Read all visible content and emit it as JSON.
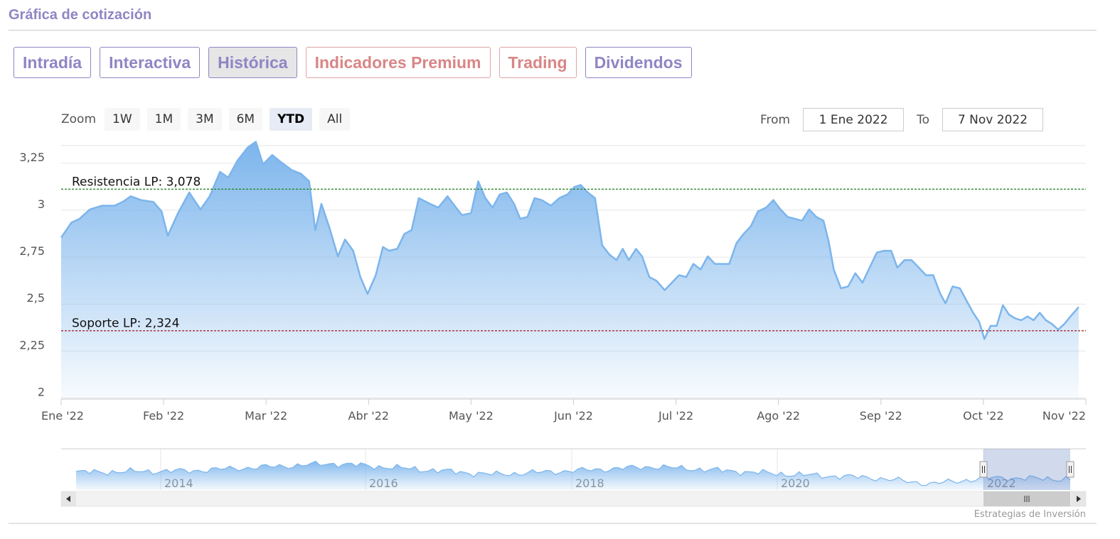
{
  "section": {
    "title": "Gráfica de cotización"
  },
  "tabs": [
    {
      "label": "Intradía",
      "kind": "normal",
      "active": false
    },
    {
      "label": "Interactiva",
      "kind": "normal",
      "active": false
    },
    {
      "label": "Histórica",
      "kind": "normal",
      "active": true
    },
    {
      "label": "Indicadores Premium",
      "kind": "premium",
      "active": false
    },
    {
      "label": "Trading",
      "kind": "premium",
      "active": false
    },
    {
      "label": "Dividendos",
      "kind": "normal",
      "active": false
    }
  ],
  "zoom": {
    "label": "Zoom",
    "buttons": [
      "1W",
      "1M",
      "3M",
      "6M",
      "YTD",
      "All"
    ],
    "selected": "YTD"
  },
  "range": {
    "from_label": "From",
    "from_value": "1 Ene 2022",
    "to_label": "To",
    "to_value": "7 Nov 2022"
  },
  "colors": {
    "accent": "#8e86c4",
    "premium": "#d98686",
    "series": "#7cb5ec",
    "resistance": "#1a7f1a",
    "support": "#a01818"
  },
  "chart_data": {
    "type": "area",
    "x_ticks": [
      "Ene '22",
      "Feb '22",
      "Mar '22",
      "Abr '22",
      "May '22",
      "Jun '22",
      "Jul '22",
      "Ago '22",
      "Sep '22",
      "Oct '22",
      "Nov '22"
    ],
    "y_ticks": [
      "2",
      "2,25",
      "2,5",
      "2,75",
      "3",
      "3,25"
    ],
    "ylim": [
      1.96,
      3.31
    ],
    "xlim": [
      0,
      1
    ],
    "grid": true,
    "series": [
      {
        "values": [
          [
            0.0,
            2.82
          ],
          [
            0.01,
            2.9
          ],
          [
            0.018,
            2.92
          ],
          [
            0.028,
            2.97
          ],
          [
            0.04,
            2.99
          ],
          [
            0.052,
            2.99
          ],
          [
            0.06,
            3.01
          ],
          [
            0.068,
            3.04
          ],
          [
            0.078,
            3.02
          ],
          [
            0.09,
            3.01
          ],
          [
            0.098,
            2.96
          ],
          [
            0.104,
            2.83
          ],
          [
            0.114,
            2.95
          ],
          [
            0.125,
            3.06
          ],
          [
            0.136,
            2.97
          ],
          [
            0.145,
            3.04
          ],
          [
            0.155,
            3.17
          ],
          [
            0.163,
            3.14
          ],
          [
            0.172,
            3.23
          ],
          [
            0.182,
            3.3
          ],
          [
            0.19,
            3.33
          ],
          [
            0.197,
            3.21
          ],
          [
            0.206,
            3.26
          ],
          [
            0.215,
            3.22
          ],
          [
            0.225,
            3.18
          ],
          [
            0.234,
            3.16
          ],
          [
            0.242,
            3.12
          ],
          [
            0.248,
            2.86
          ],
          [
            0.254,
            3.0
          ],
          [
            0.262,
            2.87
          ],
          [
            0.27,
            2.72
          ],
          [
            0.277,
            2.81
          ],
          [
            0.285,
            2.75
          ],
          [
            0.292,
            2.61
          ],
          [
            0.299,
            2.52
          ],
          [
            0.307,
            2.62
          ],
          [
            0.314,
            2.77
          ],
          [
            0.32,
            2.75
          ],
          [
            0.328,
            2.76
          ],
          [
            0.335,
            2.84
          ],
          [
            0.342,
            2.86
          ],
          [
            0.349,
            3.03
          ],
          [
            0.36,
            3.0
          ],
          [
            0.368,
            2.98
          ],
          [
            0.377,
            3.04
          ],
          [
            0.384,
            2.99
          ],
          [
            0.391,
            2.94
          ],
          [
            0.4,
            2.95
          ],
          [
            0.407,
            3.12
          ],
          [
            0.414,
            3.03
          ],
          [
            0.421,
            2.98
          ],
          [
            0.428,
            3.05
          ],
          [
            0.435,
            3.06
          ],
          [
            0.442,
            3.0
          ],
          [
            0.448,
            2.92
          ],
          [
            0.455,
            2.93
          ],
          [
            0.462,
            3.03
          ],
          [
            0.469,
            3.02
          ],
          [
            0.478,
            2.99
          ],
          [
            0.486,
            3.03
          ],
          [
            0.494,
            3.05
          ],
          [
            0.501,
            3.09
          ],
          [
            0.507,
            3.1
          ],
          [
            0.514,
            3.06
          ],
          [
            0.521,
            3.03
          ],
          [
            0.528,
            2.78
          ],
          [
            0.535,
            2.73
          ],
          [
            0.542,
            2.7
          ],
          [
            0.548,
            2.76
          ],
          [
            0.554,
            2.7
          ],
          [
            0.561,
            2.76
          ],
          [
            0.567,
            2.72
          ],
          [
            0.574,
            2.61
          ],
          [
            0.581,
            2.59
          ],
          [
            0.589,
            2.54
          ],
          [
            0.596,
            2.58
          ],
          [
            0.603,
            2.62
          ],
          [
            0.61,
            2.61
          ],
          [
            0.617,
            2.68
          ],
          [
            0.624,
            2.65
          ],
          [
            0.631,
            2.72
          ],
          [
            0.638,
            2.68
          ],
          [
            0.645,
            2.68
          ],
          [
            0.652,
            2.68
          ],
          [
            0.659,
            2.79
          ],
          [
            0.666,
            2.84
          ],
          [
            0.673,
            2.88
          ],
          [
            0.68,
            2.96
          ],
          [
            0.688,
            2.98
          ],
          [
            0.695,
            3.02
          ],
          [
            0.702,
            2.97
          ],
          [
            0.709,
            2.93
          ],
          [
            0.716,
            2.92
          ],
          [
            0.723,
            2.91
          ],
          [
            0.73,
            2.97
          ],
          [
            0.737,
            2.93
          ],
          [
            0.744,
            2.91
          ],
          [
            0.749,
            2.8
          ],
          [
            0.754,
            2.65
          ],
          [
            0.761,
            2.55
          ],
          [
            0.768,
            2.56
          ],
          [
            0.775,
            2.63
          ],
          [
            0.782,
            2.58
          ],
          [
            0.789,
            2.66
          ],
          [
            0.796,
            2.74
          ],
          [
            0.803,
            2.75
          ],
          [
            0.81,
            2.75
          ],
          [
            0.816,
            2.66
          ],
          [
            0.823,
            2.7
          ],
          [
            0.83,
            2.7
          ],
          [
            0.837,
            2.66
          ],
          [
            0.844,
            2.62
          ],
          [
            0.851,
            2.62
          ],
          [
            0.858,
            2.52
          ],
          [
            0.863,
            2.47
          ],
          [
            0.87,
            2.56
          ],
          [
            0.877,
            2.55
          ],
          [
            0.884,
            2.48
          ],
          [
            0.89,
            2.42
          ],
          [
            0.896,
            2.37
          ],
          [
            0.901,
            2.28
          ],
          [
            0.907,
            2.35
          ],
          [
            0.913,
            2.35
          ],
          [
            0.919,
            2.46
          ],
          [
            0.925,
            2.41
          ],
          [
            0.931,
            2.39
          ],
          [
            0.937,
            2.38
          ],
          [
            0.943,
            2.4
          ],
          [
            0.949,
            2.38
          ],
          [
            0.955,
            2.42
          ],
          [
            0.961,
            2.38
          ],
          [
            0.967,
            2.36
          ],
          [
            0.973,
            2.33
          ],
          [
            0.979,
            2.36
          ],
          [
            0.985,
            2.4
          ],
          [
            0.993,
            2.45
          ]
        ]
      }
    ],
    "resistance": {
      "label": "Resistencia LP: 3,078",
      "value": 3.078
    },
    "support": {
      "label": "Soporte LP: 2,324",
      "value": 2.324
    },
    "navigator": {
      "labels": [
        "2014",
        "2016",
        "2018",
        "2020",
        "2022"
      ]
    },
    "credits": "Estrategias de Inversión"
  }
}
